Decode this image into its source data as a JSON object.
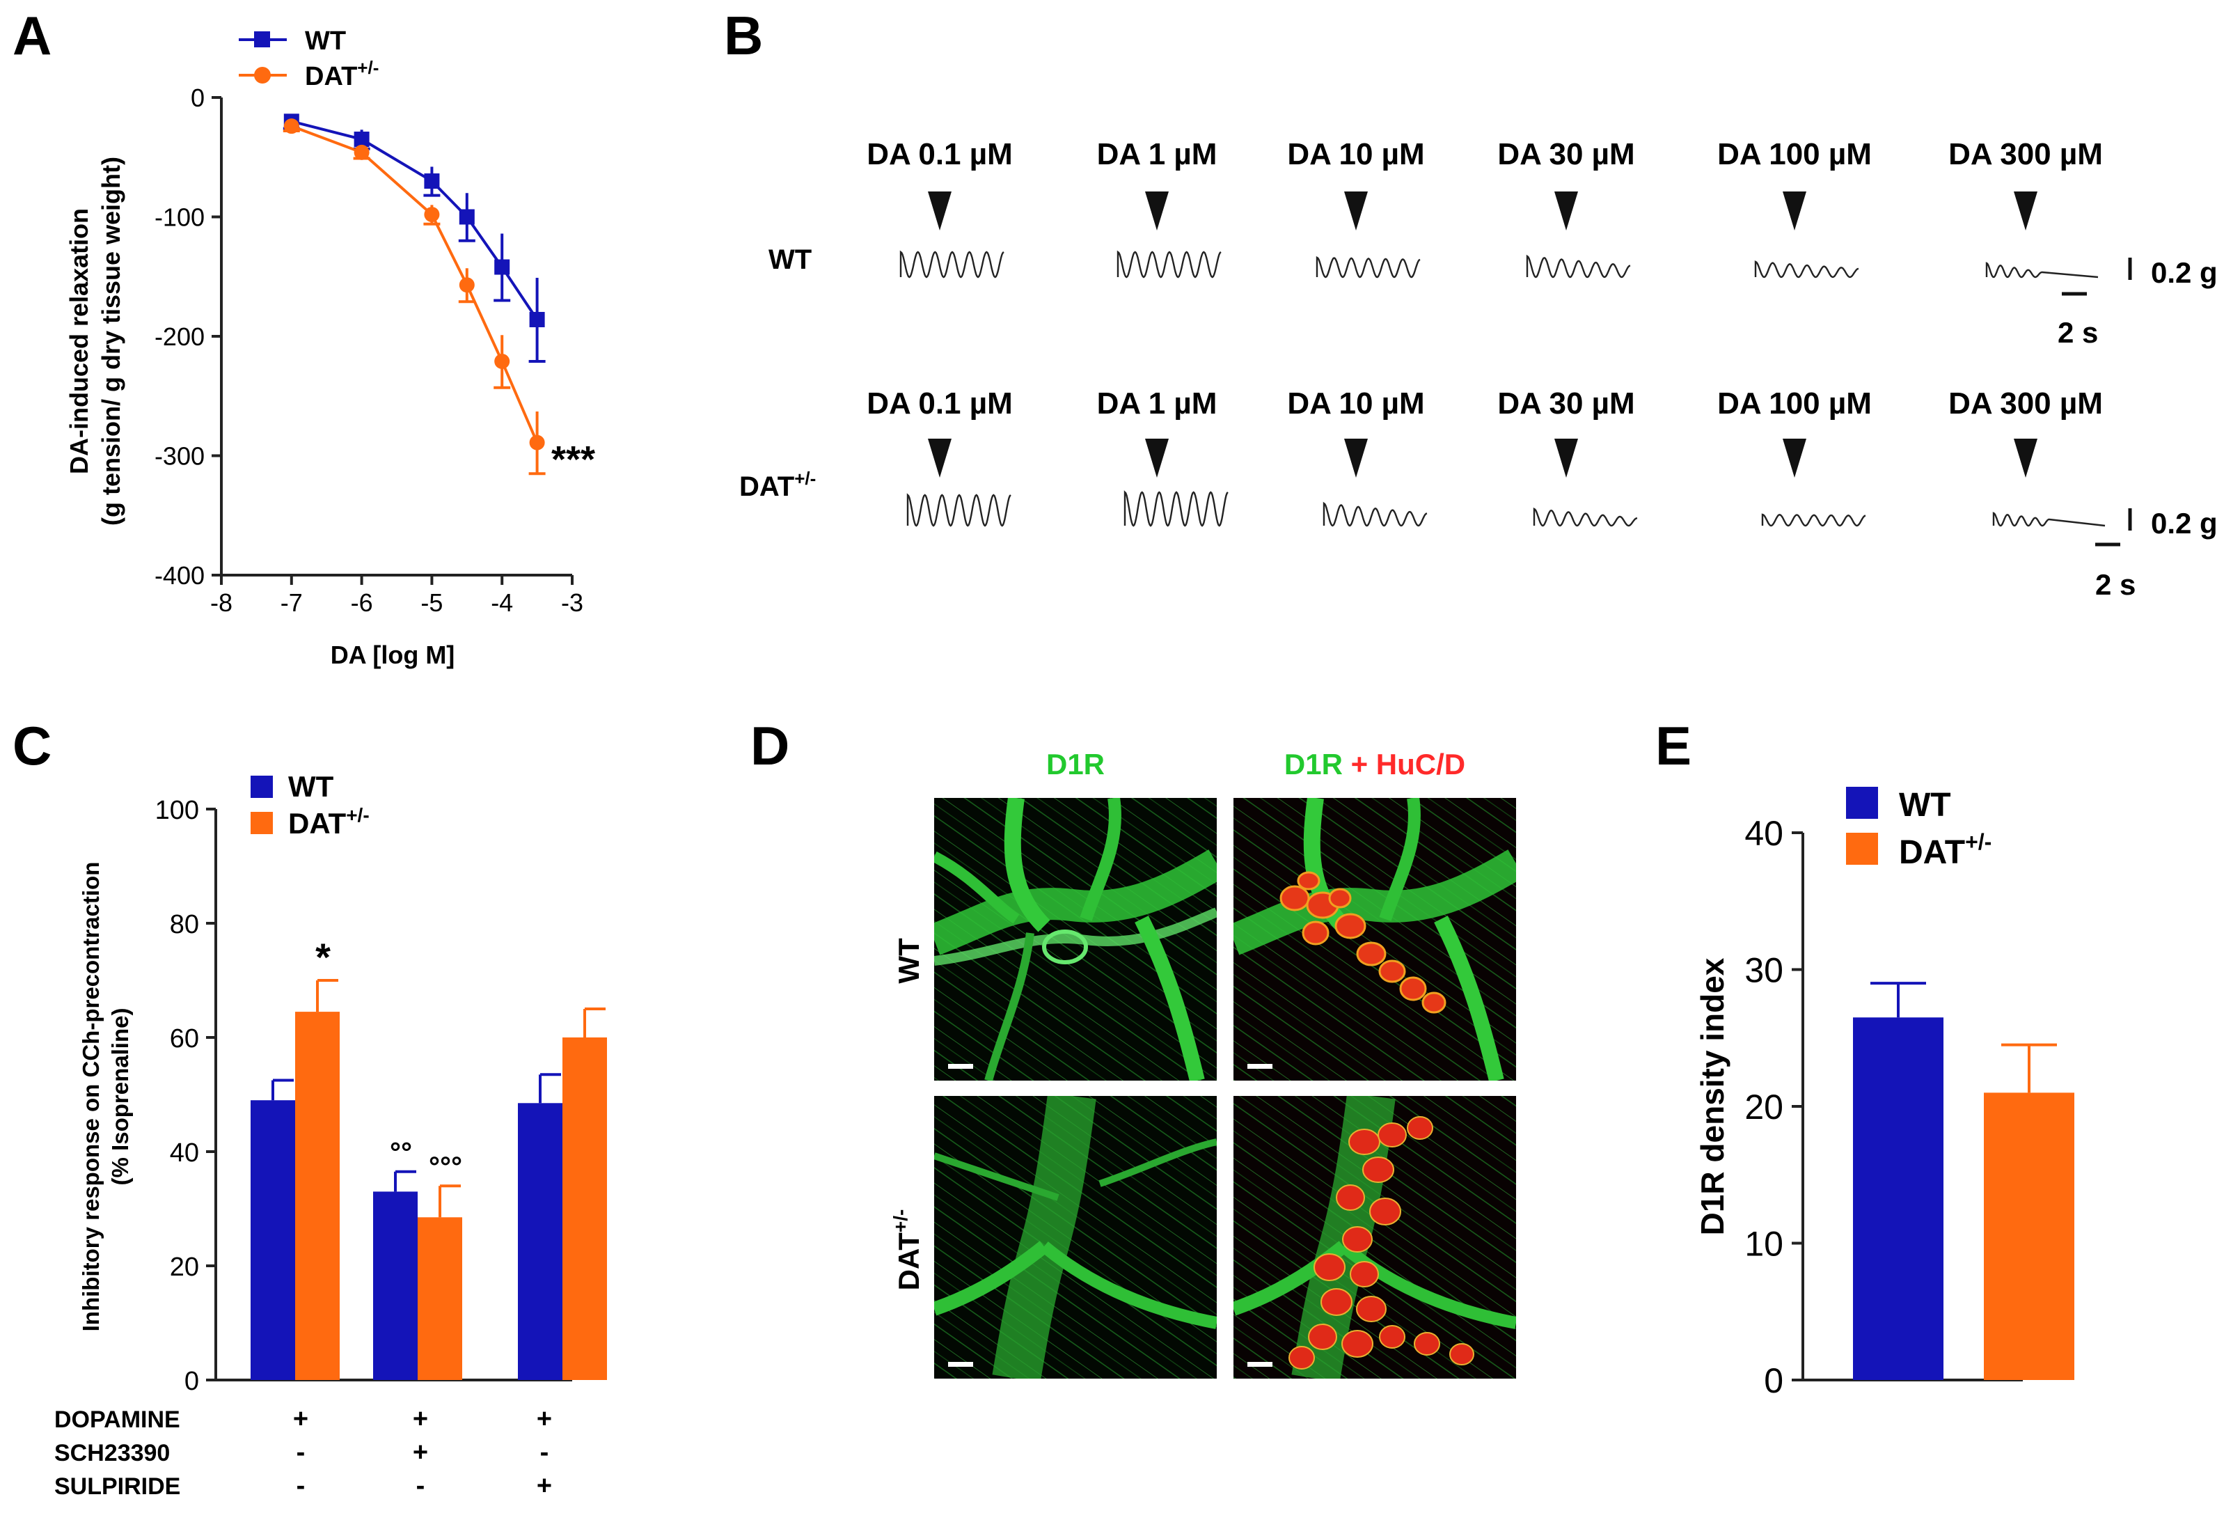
{
  "colors": {
    "wt": "#1414b8",
    "dat": "#ff6a10",
    "axis": "#222222",
    "d1r": "#22c92e",
    "huc": "#ff2a2a"
  },
  "panels": {
    "A": "A",
    "B": "B",
    "C": "C",
    "D": "D",
    "E": "E"
  },
  "legend": {
    "wt": "WT",
    "dat_base": "DAT",
    "dat_sup": "+/-"
  },
  "chart_data": [
    {
      "id": "A",
      "type": "line",
      "xlabel": "DA [log M]",
      "ylabel_line1": "DA-induced relaxation",
      "ylabel_line2": "(g tension/ g dry tissue weight)",
      "xlim": [
        -8,
        -3
      ],
      "ylim": [
        -400,
        0
      ],
      "xticks": [
        -8,
        -7,
        -6,
        -5,
        -4,
        -3
      ],
      "yticks": [
        0,
        -100,
        -200,
        -300,
        -400
      ],
      "significance": "***",
      "series": [
        {
          "name": "WT",
          "x": [
            -7,
            -6,
            -5,
            -4.5,
            -4,
            -3.5
          ],
          "y": [
            -20,
            -35,
            -70,
            -100,
            -142,
            -186
          ],
          "err": [
            6,
            8,
            12,
            20,
            28,
            35
          ],
          "marker": "square"
        },
        {
          "name": "DAT+/-",
          "x": [
            -7,
            -6,
            -5,
            -4.5,
            -4,
            -3.5
          ],
          "y": [
            -24,
            -46,
            -98,
            -157,
            -221,
            -289
          ],
          "err": [
            4,
            5,
            8,
            14,
            22,
            26
          ],
          "marker": "circle"
        }
      ]
    },
    {
      "id": "C",
      "type": "bar",
      "ylabel_line1": "Inhibitory response on CCh-precontraction",
      "ylabel_line2": "(% Isoprenaline)",
      "ylim": [
        0,
        100
      ],
      "yticks": [
        0,
        20,
        40,
        60,
        80,
        100
      ],
      "series": [
        {
          "name": "WT",
          "values": [
            49,
            33,
            48.5
          ],
          "err": [
            3.5,
            3.5,
            5
          ]
        },
        {
          "name": "DAT+/-",
          "values": [
            64.5,
            28.5,
            60
          ],
          "err": [
            5.5,
            5.5,
            5
          ]
        }
      ],
      "annotations": [
        {
          "group": 0,
          "series": 1,
          "text": "*"
        },
        {
          "group": 1,
          "series": 0,
          "text": "°°"
        },
        {
          "group": 1,
          "series": 1,
          "text": "°°°"
        }
      ],
      "treatments": [
        {
          "label": "DOPAMINE",
          "signs": [
            "+",
            "+",
            "+"
          ]
        },
        {
          "label": "SCH23390",
          "signs": [
            "-",
            "+",
            "-"
          ]
        },
        {
          "label": "SULPIRIDE",
          "signs": [
            "-",
            "-",
            "+"
          ]
        }
      ]
    },
    {
      "id": "E",
      "type": "bar",
      "ylabel": "D1R density index",
      "ylim": [
        0,
        40
      ],
      "yticks": [
        0,
        10,
        20,
        30,
        40
      ],
      "series": [
        {
          "name": "WT",
          "value": 26.5,
          "err": 2.5
        },
        {
          "name": "DAT+/-",
          "value": 21,
          "err": 3.5
        }
      ]
    }
  ],
  "traces": {
    "concentrations": [
      "DA 0.1 µM",
      "DA 1 µM",
      "DA 10 µM",
      "DA 30 µM",
      "DA 100 µM",
      "DA 300 µM"
    ],
    "row_labels": [
      "WT",
      "DAT"
    ],
    "scale_force": "0.2 g",
    "scale_time": "2 s"
  },
  "micrographs": {
    "col1": "D1R",
    "col2_a": "D1R",
    "col2_plus": " + ",
    "col2_b": "HuC/D",
    "rows": [
      "WT",
      "DAT"
    ]
  }
}
